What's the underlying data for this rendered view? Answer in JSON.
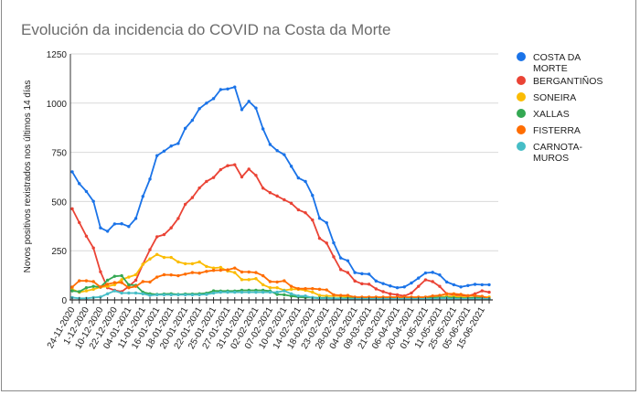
{
  "chart_data": {
    "type": "line",
    "title": "Evolución da incidencia do COVID na Costa da Morte",
    "xlabel": "",
    "ylabel": "Novos positivos rexistrados nos últimos 14 días",
    "ylim": [
      0,
      1250
    ],
    "yticks": [
      0,
      250,
      500,
      750,
      1000,
      1250
    ],
    "grid": true,
    "legend_position": "right",
    "x_tick_labels": [
      "24-11-2020",
      "1-12-2020",
      "10-12-2020",
      "22-12-2020",
      "04-01-2021",
      "11-01-2021",
      "16-01-2021",
      "18-01-2021",
      "20-01-2021",
      "22-01-2021",
      "25-01-2021",
      "27-01-2021",
      "31-01-2021",
      "02-02-2021",
      "07-02-2021",
      "10-02-2021",
      "14-02-2021",
      "18-02-2021",
      "23-02-2021",
      "28-02-2021",
      "04-03-2021",
      "09-03-2021",
      "21-03-2021",
      "06-04-2021",
      "20-04-2021",
      "01-05-2021",
      "11-05-2021",
      "25-05-2021",
      "05-06-2021",
      "15-06-2021"
    ],
    "series": [
      {
        "name": "COSTA DA MORTE",
        "legend_lines": [
          "COSTA DA",
          "MORTE"
        ],
        "color": "#1a73e8",
        "values": [
          651,
          591,
          551,
          501,
          366,
          349,
          386,
          387,
          373,
          414,
          526,
          614,
          733,
          756,
          782,
          795,
          872,
          913,
          972,
          1000,
          1023,
          1069,
          1072,
          1082,
          967,
          1009,
          975,
          869,
          790,
          759,
          738,
          679,
          620,
          602,
          531,
          415,
          392,
          290,
          213,
          199,
          139,
          133,
          131,
          96,
          83,
          71,
          62,
          66,
          86,
          111,
          137,
          140,
          127,
          91,
          77,
          66,
          73,
          79,
          77,
          77
        ]
      },
      {
        "name": "BERGANTIÑOS",
        "legend_lines": [
          "BERGANTIÑOS"
        ],
        "color": "#ea4335",
        "values": [
          463,
          393,
          324,
          264,
          143,
          62,
          49,
          42,
          69,
          100,
          181,
          255,
          321,
          332,
          366,
          414,
          486,
          520,
          569,
          602,
          622,
          662,
          682,
          687,
          625,
          665,
          633,
          568,
          545,
          528,
          509,
          491,
          458,
          443,
          406,
          313,
          289,
          219,
          154,
          139,
          96,
          82,
          80,
          56,
          42,
          31,
          26,
          20,
          35,
          69,
          102,
          93,
          69,
          31,
          26,
          23,
          20,
          31,
          46,
          39
        ]
      },
      {
        "name": "SONEIRA",
        "legend_lines": [
          "SONEIRA"
        ],
        "color": "#fbbc04",
        "values": [
          54,
          39,
          46,
          54,
          65,
          69,
          77,
          103,
          116,
          128,
          181,
          208,
          231,
          216,
          216,
          193,
          184,
          184,
          193,
          170,
          162,
          165,
          147,
          139,
          103,
          103,
          108,
          77,
          62,
          62,
          49,
          54,
          54,
          49,
          39,
          23,
          20,
          20,
          20,
          15,
          12,
          12,
          12,
          10,
          10,
          10,
          10,
          10,
          10,
          10,
          10,
          12,
          15,
          18,
          18,
          15,
          12,
          10,
          12,
          15
        ]
      },
      {
        "name": "XALLAS",
        "legend_lines": [
          "XALLAS"
        ],
        "color": "#34a853",
        "values": [
          46,
          42,
          62,
          69,
          65,
          100,
          120,
          123,
          77,
          74,
          39,
          31,
          28,
          30,
          31,
          28,
          30,
          30,
          31,
          34,
          46,
          45,
          45,
          45,
          49,
          49,
          49,
          49,
          45,
          28,
          26,
          20,
          15,
          12,
          12,
          10,
          10,
          8,
          8,
          8,
          8,
          8,
          8,
          8,
          8,
          8,
          8,
          8,
          8,
          8,
          8,
          10,
          12,
          12,
          10,
          8,
          8,
          12,
          8,
          6
        ]
      },
      {
        "name": "FISTERRA",
        "legend_lines": [
          "FISTERRA"
        ],
        "color": "#ff6d01",
        "values": [
          65,
          97,
          97,
          93,
          65,
          80,
          88,
          88,
          62,
          69,
          93,
          91,
          116,
          128,
          127,
          123,
          131,
          139,
          136,
          145,
          150,
          151,
          153,
          162,
          142,
          142,
          139,
          123,
          93,
          91,
          97,
          69,
          57,
          57,
          57,
          54,
          51,
          26,
          23,
          23,
          14,
          14,
          14,
          14,
          14,
          14,
          14,
          14,
          14,
          14,
          14,
          20,
          23,
          31,
          31,
          28,
          22,
          22,
          18,
          8
        ]
      },
      {
        "name": "CARNOTA-MUROS",
        "legend_lines": [
          "CARNOTA-",
          "MUROS"
        ],
        "color": "#46bdc6",
        "values": [
          12,
          8,
          8,
          12,
          15,
          31,
          46,
          35,
          35,
          35,
          31,
          23,
          26,
          26,
          26,
          26,
          26,
          26,
          26,
          28,
          35,
          39,
          39,
          39,
          39,
          39,
          39,
          39,
          39,
          39,
          46,
          31,
          20,
          20,
          11,
          8,
          8,
          8,
          5,
          5,
          5,
          5,
          5,
          5,
          5,
          5,
          5,
          5,
          5,
          5,
          5,
          5,
          8,
          8,
          5,
          5,
          5,
          5,
          5,
          5
        ]
      }
    ]
  }
}
